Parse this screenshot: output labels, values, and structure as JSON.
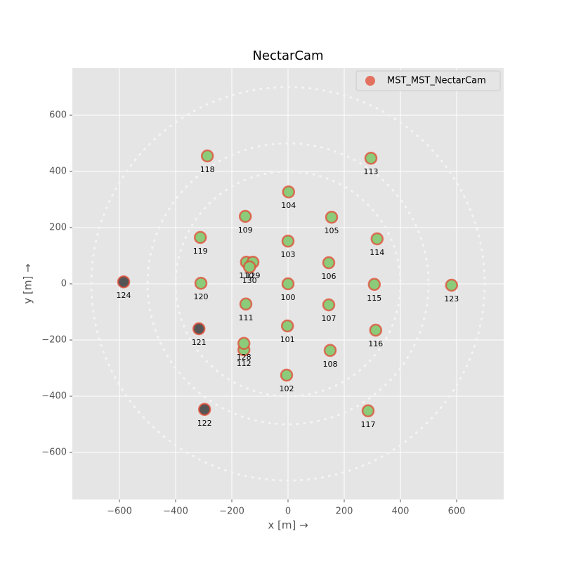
{
  "chart_data": {
    "type": "scatter",
    "title": "NectarCam",
    "x_label": "x [m] →",
    "y_label": "y [m] →",
    "xlim": [
      -767.5,
      767.5
    ],
    "ylim": [
      -767.5,
      767.5
    ],
    "xticks": [
      {
        "value": -600,
        "label": "−600"
      },
      {
        "value": -400,
        "label": "−400"
      },
      {
        "value": -200,
        "label": "−200"
      },
      0,
      200,
      400,
      600
    ],
    "yticks": [
      {
        "value": -600,
        "label": "−600"
      },
      {
        "value": -400,
        "label": "−400"
      },
      {
        "value": -200,
        "label": "−200"
      },
      0,
      200,
      400,
      600
    ],
    "grid": true,
    "legend": "upper right",
    "ring_radii": [
      400,
      500,
      700
    ],
    "series": [
      {
        "name": "MST_MST_NectarCam",
        "color": "#e24a33",
        "labels": [
          "100",
          "101",
          "102",
          "103",
          "104",
          "105",
          "106",
          "107",
          "108",
          "109",
          "110",
          "111",
          "112",
          "113",
          "114",
          "115",
          "116",
          "117",
          "118",
          "119",
          "120",
          "121",
          "122",
          "123",
          "124",
          "128",
          "129",
          "130"
        ],
        "x": [
          0,
          -2,
          -5,
          0,
          2,
          155,
          145,
          145,
          150,
          -152,
          -148,
          -150,
          -157,
          295,
          317,
          307,
          312,
          285,
          -287,
          -312,
          -310,
          -317,
          -297,
          582,
          -585,
          -157,
          -125,
          -137
        ],
        "values": [
          0,
          -150,
          -325,
          152,
          327,
          237,
          75,
          -75,
          -237,
          240,
          77,
          -72,
          -235,
          447,
          160,
          -2,
          -165,
          -452,
          455,
          165,
          2,
          -160,
          -447,
          -5,
          7,
          -212,
          77,
          60
        ],
        "point_colors": [
          "#8ccb7a",
          "#8ccb7a",
          "#8ccb7a",
          "#8ccb7a",
          "#8ccb7a",
          "#8ccb7a",
          "#8ccb7a",
          "#8ccb7a",
          "#8ccb7a",
          "#8ccb7a",
          "#8ccb7a",
          "#8ccb7a",
          "#8ccb7a",
          "#8ccb7a",
          "#8ccb7a",
          "#8ccb7a",
          "#8ccb7a",
          "#8ccb7a",
          "#8ccb7a",
          "#8ccb7a",
          "#8ccb7a",
          "#555555",
          "#555555",
          "#8ccb7a",
          "#555555",
          "#8ccb7a",
          "#8ccb7a",
          "#8ccb7a"
        ]
      }
    ]
  }
}
